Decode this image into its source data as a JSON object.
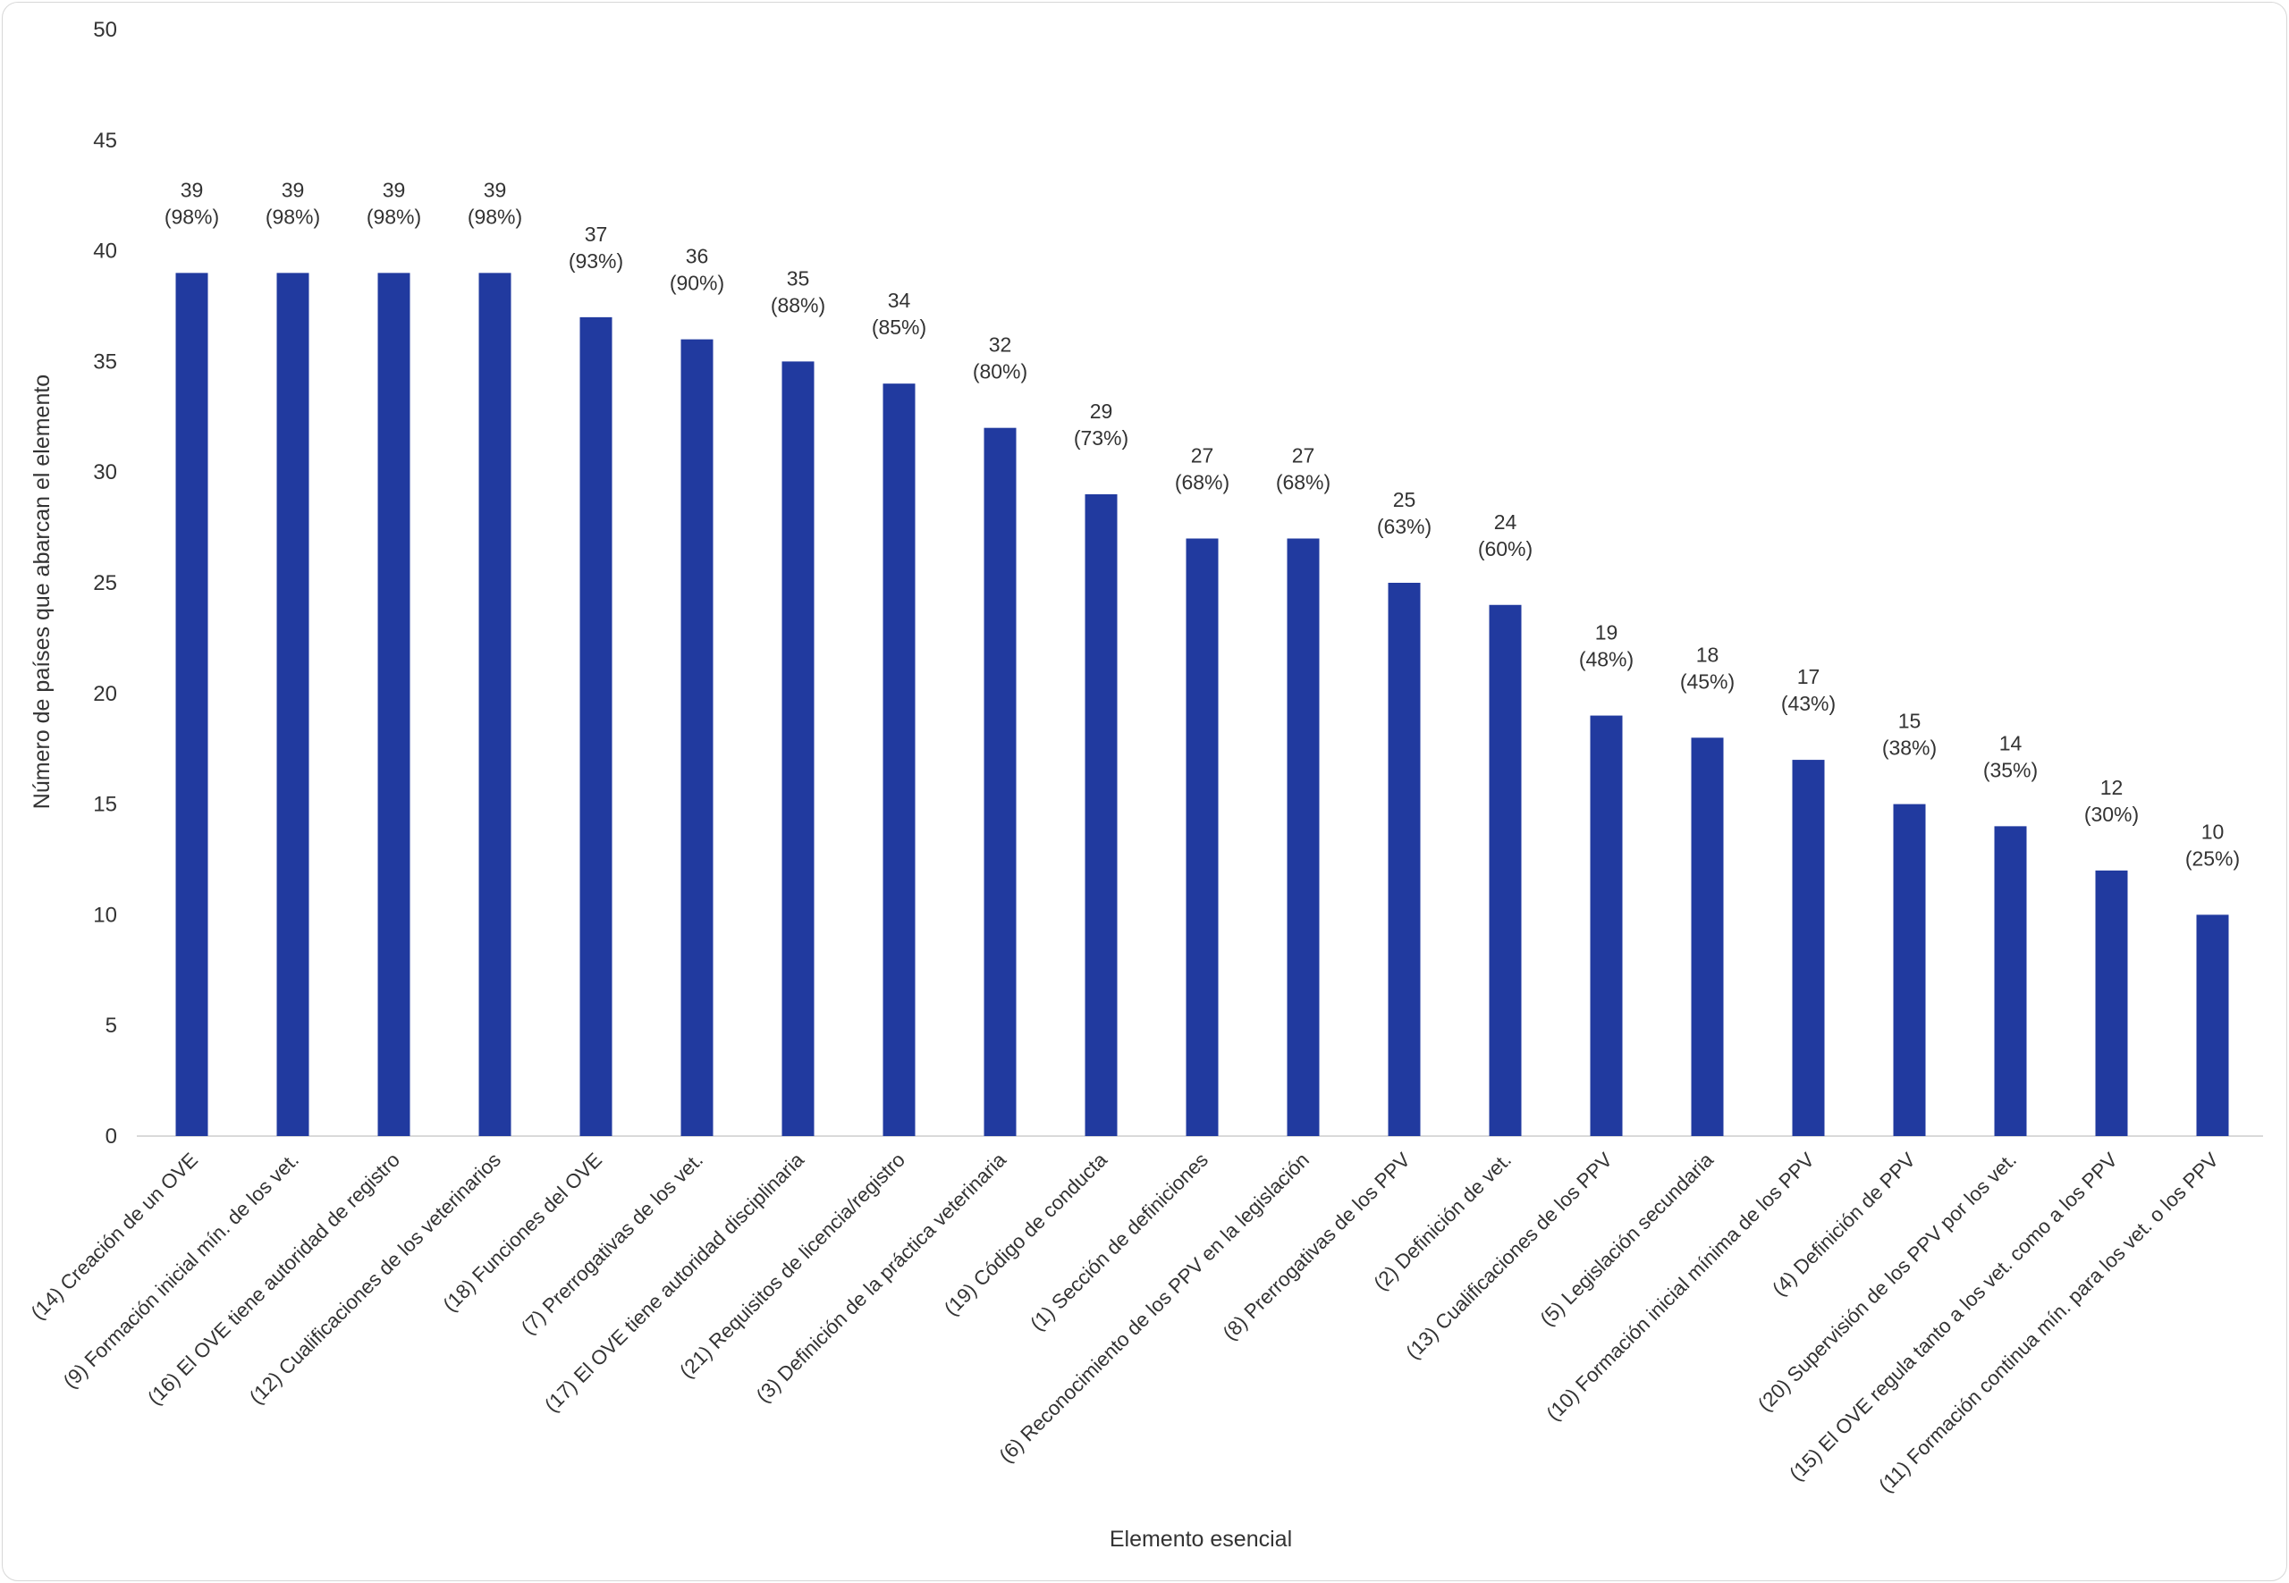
{
  "chart_data": {
    "type": "bar",
    "title": "",
    "xlabel": "Elemento esencial",
    "ylabel": "Número de países que abarcan el elemento",
    "ylim": [
      0,
      50
    ],
    "yticks": [
      0,
      5,
      10,
      15,
      20,
      25,
      30,
      35,
      40,
      45,
      50
    ],
    "grid": false,
    "legend": "none",
    "bar_color": "#213A9F",
    "categories": [
      "(14) Creación de un OVE",
      "(9) Formación inicial mín. de los vet.",
      "(16) El OVE tiene autoridad de registro",
      "(12) Cualificaciones de los veterinarios",
      "(18) Funciones del OVE",
      "(7) Prerrogativas de los vet.",
      "(17) El OVE tiene autoridad disciplinaria",
      "(21) Requisitos de licencia/registro",
      "(3) Definición de la práctica veterinaria",
      "(19) Código de conducta",
      "(1) Sección de definiciones",
      "(6) Reconocimiento de los PPV en la legislación",
      "(8) Prerrogativas de los PPV",
      "(2) Definición de vet.",
      "(13) Cualificaciones de los PPV",
      "(5) Legislación secundaria",
      "(10) Formación inicial mínima de los PPV",
      "(4) Definición de PPV",
      "(20) Supervisión de los PPV por los vet.",
      "(15) El OVE regula tanto a los vet. como a los PPV",
      "(11) Formación continua mín. para los vet. o los PPV"
    ],
    "values": [
      39,
      39,
      39,
      39,
      37,
      36,
      35,
      34,
      32,
      29,
      27,
      27,
      25,
      24,
      19,
      18,
      17,
      15,
      14,
      12,
      10
    ],
    "percent_labels": [
      "(98%)",
      "(98%)",
      "(98%)",
      "(98%)",
      "(93%)",
      "(90%)",
      "(88%)",
      "(85%)",
      "(80%)",
      "(73%)",
      "(68%)",
      "(68%)",
      "(63%)",
      "(60%)",
      "(48%)",
      "(45%)",
      "(43%)",
      "(38%)",
      "(35%)",
      "(30%)",
      "(25%)"
    ]
  }
}
